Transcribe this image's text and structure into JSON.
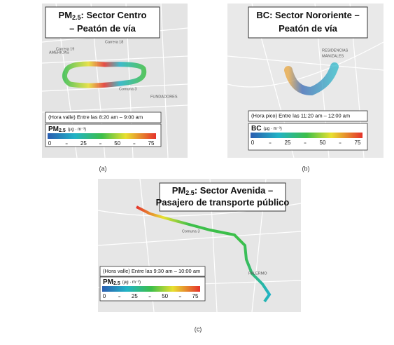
{
  "panels": [
    {
      "title": {
        "prefix": "PM",
        "sub": "2.5",
        "line1": ": Sector Centro",
        "line2": "– Peatón de vía"
      },
      "period": "(Hora valle) Entre las 8:20 am – 9:00 am",
      "legend": {
        "prefix": "PM",
        "sub": "2.5",
        "unit": "(µg · m⁻³)",
        "ticks": [
          0,
          25,
          50,
          75
        ]
      },
      "map_labels": [
        "Carrera 19",
        "Carrera 18",
        "Carrera 16",
        "AMERICAS",
        "Comuna 3",
        "FUNDADORES",
        "EL ROSARIO"
      ],
      "caption": "(a)"
    },
    {
      "title": {
        "prefix": "BC",
        "line1": ": Sector Nororiente –",
        "line2": "Peatón de vía"
      },
      "period": "(Hora pico) Entre las 11:20 am – 12:00 am",
      "legend": {
        "prefix": "BC",
        "unit": "(µg · m⁻³)",
        "ticks": [
          0,
          25,
          50,
          75
        ]
      },
      "map_labels": [
        "RESIDENCIAS",
        "MANIZALES"
      ],
      "caption": "(b)"
    },
    {
      "title": {
        "prefix": "PM",
        "sub": "2.5",
        "line1": ": Sector Avenida –",
        "line2": "Pasajero de transporte público"
      },
      "period": "(Hora valle) Entre las 9:30 am – 10:00 am",
      "legend": {
        "prefix": "PM",
        "sub": "2.5",
        "unit": "(µg · m⁻³)",
        "ticks": [
          0,
          25,
          50,
          75
        ]
      },
      "map_labels": [
        "Comuna 3",
        "PALERMO"
      ],
      "caption": "(c)"
    }
  ]
}
